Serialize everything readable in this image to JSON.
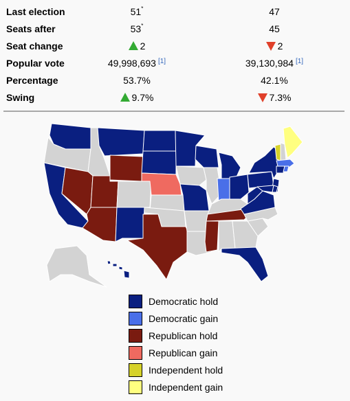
{
  "stats": {
    "last_election": {
      "label": "Last election",
      "c1": "51",
      "c1_mark": "*",
      "c2": "47"
    },
    "seats_after": {
      "label": "Seats after",
      "c1": "53",
      "c1_mark": "*",
      "c2": "45"
    },
    "seat_change": {
      "label": "Seat change",
      "c1": "2",
      "c2": "2"
    },
    "popular_vote": {
      "label": "Popular vote",
      "c1": "49,998,693",
      "c1_ref": "[1]",
      "c2": "39,130,984",
      "c2_ref": "[1]"
    },
    "percentage": {
      "label": "Percentage",
      "c1": "53.7%",
      "c2": "42.1%"
    },
    "swing": {
      "label": "Swing",
      "c1": "9.7%",
      "c2": "7.3%"
    }
  },
  "colors": {
    "democratic_hold": "#0a1f80",
    "democratic_gain": "#4a6fe8",
    "republican_hold": "#7a1b10",
    "republican_gain": "#ef6a60",
    "independent_hold": "#d6d22a",
    "independent_gain": "#ffff80",
    "no_election": "#d3d3d3",
    "increase_arrow": "#33aa33",
    "decrease_arrow": "#e0402a"
  },
  "legend": [
    {
      "label": "Democratic hold",
      "color": "#0a1f80"
    },
    {
      "label": "Democratic gain",
      "color": "#4a6fe8"
    },
    {
      "label": "Republican hold",
      "color": "#7a1b10"
    },
    {
      "label": "Republican gain",
      "color": "#ef6a60"
    },
    {
      "label": "Independent hold",
      "color": "#d6d22a"
    },
    {
      "label": "Independent gain",
      "color": "#ffff80"
    }
  ]
}
